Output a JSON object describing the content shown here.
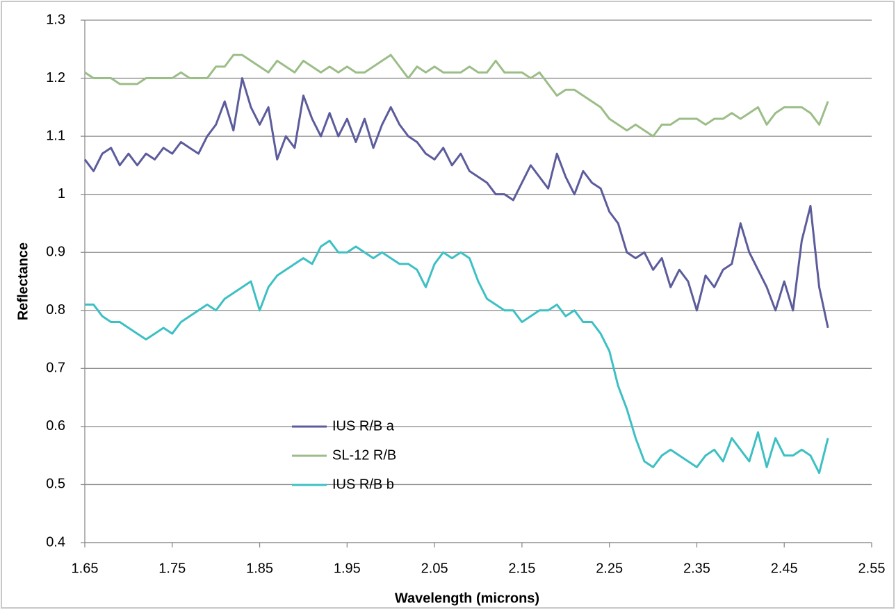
{
  "chart_data": {
    "type": "line",
    "xlabel": "Wavelength (microns)",
    "ylabel": "Reflectance",
    "x": [
      1.65,
      1.66,
      1.67,
      1.68,
      1.69,
      1.7,
      1.71,
      1.72,
      1.73,
      1.74,
      1.75,
      1.76,
      1.77,
      1.78,
      1.79,
      1.8,
      1.81,
      1.82,
      1.83,
      1.84,
      1.85,
      1.86,
      1.87,
      1.88,
      1.89,
      1.9,
      1.91,
      1.92,
      1.93,
      1.94,
      1.95,
      1.96,
      1.97,
      1.98,
      1.99,
      2.0,
      2.01,
      2.02,
      2.03,
      2.04,
      2.05,
      2.06,
      2.07,
      2.08,
      2.09,
      2.1,
      2.11,
      2.12,
      2.13,
      2.14,
      2.15,
      2.16,
      2.17,
      2.18,
      2.19,
      2.2,
      2.21,
      2.22,
      2.23,
      2.24,
      2.25,
      2.26,
      2.27,
      2.28,
      2.29,
      2.3,
      2.31,
      2.32,
      2.33,
      2.34,
      2.35,
      2.36,
      2.37,
      2.38,
      2.39,
      2.4,
      2.41,
      2.42,
      2.43,
      2.44,
      2.45,
      2.46,
      2.47,
      2.48,
      2.49,
      2.5
    ],
    "series": [
      {
        "name": "IUS R/B a",
        "color": "#5c5c9c",
        "values": [
          1.06,
          1.04,
          1.07,
          1.08,
          1.05,
          1.07,
          1.05,
          1.07,
          1.06,
          1.08,
          1.07,
          1.09,
          1.08,
          1.07,
          1.1,
          1.12,
          1.16,
          1.11,
          1.2,
          1.15,
          1.12,
          1.15,
          1.06,
          1.1,
          1.08,
          1.17,
          1.13,
          1.1,
          1.14,
          1.1,
          1.13,
          1.09,
          1.13,
          1.08,
          1.12,
          1.15,
          1.12,
          1.1,
          1.09,
          1.07,
          1.06,
          1.08,
          1.05,
          1.07,
          1.04,
          1.03,
          1.02,
          1.0,
          1.0,
          0.99,
          1.02,
          1.05,
          1.03,
          1.01,
          1.07,
          1.03,
          1.0,
          1.04,
          1.02,
          1.01,
          0.97,
          0.95,
          0.9,
          0.89,
          0.9,
          0.87,
          0.89,
          0.84,
          0.87,
          0.85,
          0.8,
          0.86,
          0.84,
          0.87,
          0.88,
          0.95,
          0.9,
          0.87,
          0.84,
          0.8,
          0.85,
          0.8,
          0.92,
          0.98,
          0.84,
          0.77
        ]
      },
      {
        "name": "SL-12 R/B",
        "color": "#9bbd87",
        "values": [
          1.21,
          1.2,
          1.2,
          1.2,
          1.19,
          1.19,
          1.19,
          1.2,
          1.2,
          1.2,
          1.2,
          1.21,
          1.2,
          1.2,
          1.2,
          1.22,
          1.22,
          1.24,
          1.24,
          1.23,
          1.22,
          1.21,
          1.23,
          1.22,
          1.21,
          1.23,
          1.22,
          1.21,
          1.22,
          1.21,
          1.22,
          1.21,
          1.21,
          1.22,
          1.23,
          1.24,
          1.22,
          1.2,
          1.22,
          1.21,
          1.22,
          1.21,
          1.21,
          1.21,
          1.22,
          1.21,
          1.21,
          1.23,
          1.21,
          1.21,
          1.21,
          1.2,
          1.21,
          1.19,
          1.17,
          1.18,
          1.18,
          1.17,
          1.16,
          1.15,
          1.13,
          1.12,
          1.11,
          1.12,
          1.11,
          1.1,
          1.12,
          1.12,
          1.13,
          1.13,
          1.13,
          1.12,
          1.13,
          1.13,
          1.14,
          1.13,
          1.14,
          1.15,
          1.12,
          1.14,
          1.15,
          1.15,
          1.15,
          1.14,
          1.12,
          1.16
        ]
      },
      {
        "name": "IUS R/B b",
        "color": "#3dc0c3",
        "values": [
          0.81,
          0.81,
          0.79,
          0.78,
          0.78,
          0.77,
          0.76,
          0.75,
          0.76,
          0.77,
          0.76,
          0.78,
          0.79,
          0.8,
          0.81,
          0.8,
          0.82,
          0.83,
          0.84,
          0.85,
          0.8,
          0.84,
          0.86,
          0.87,
          0.88,
          0.89,
          0.88,
          0.91,
          0.92,
          0.9,
          0.9,
          0.91,
          0.9,
          0.89,
          0.9,
          0.89,
          0.88,
          0.88,
          0.87,
          0.84,
          0.88,
          0.9,
          0.89,
          0.9,
          0.89,
          0.85,
          0.82,
          0.81,
          0.8,
          0.8,
          0.78,
          0.79,
          0.8,
          0.8,
          0.81,
          0.79,
          0.8,
          0.78,
          0.78,
          0.76,
          0.73,
          0.67,
          0.63,
          0.58,
          0.54,
          0.53,
          0.55,
          0.56,
          0.55,
          0.54,
          0.53,
          0.55,
          0.56,
          0.54,
          0.58,
          0.56,
          0.54,
          0.59,
          0.53,
          0.58,
          0.55,
          0.55,
          0.56,
          0.55,
          0.52,
          0.58
        ]
      }
    ],
    "xlim": [
      1.65,
      2.55
    ],
    "xticks": [
      1.65,
      1.75,
      1.85,
      1.95,
      2.05,
      2.15,
      2.25,
      2.35,
      2.45,
      2.55
    ],
    "ylim": [
      0.4,
      1.3
    ],
    "yticks": [
      0.4,
      0.5,
      0.6,
      0.7,
      0.8,
      0.9,
      1,
      1.1,
      1.2,
      1.3
    ],
    "grid": true
  }
}
